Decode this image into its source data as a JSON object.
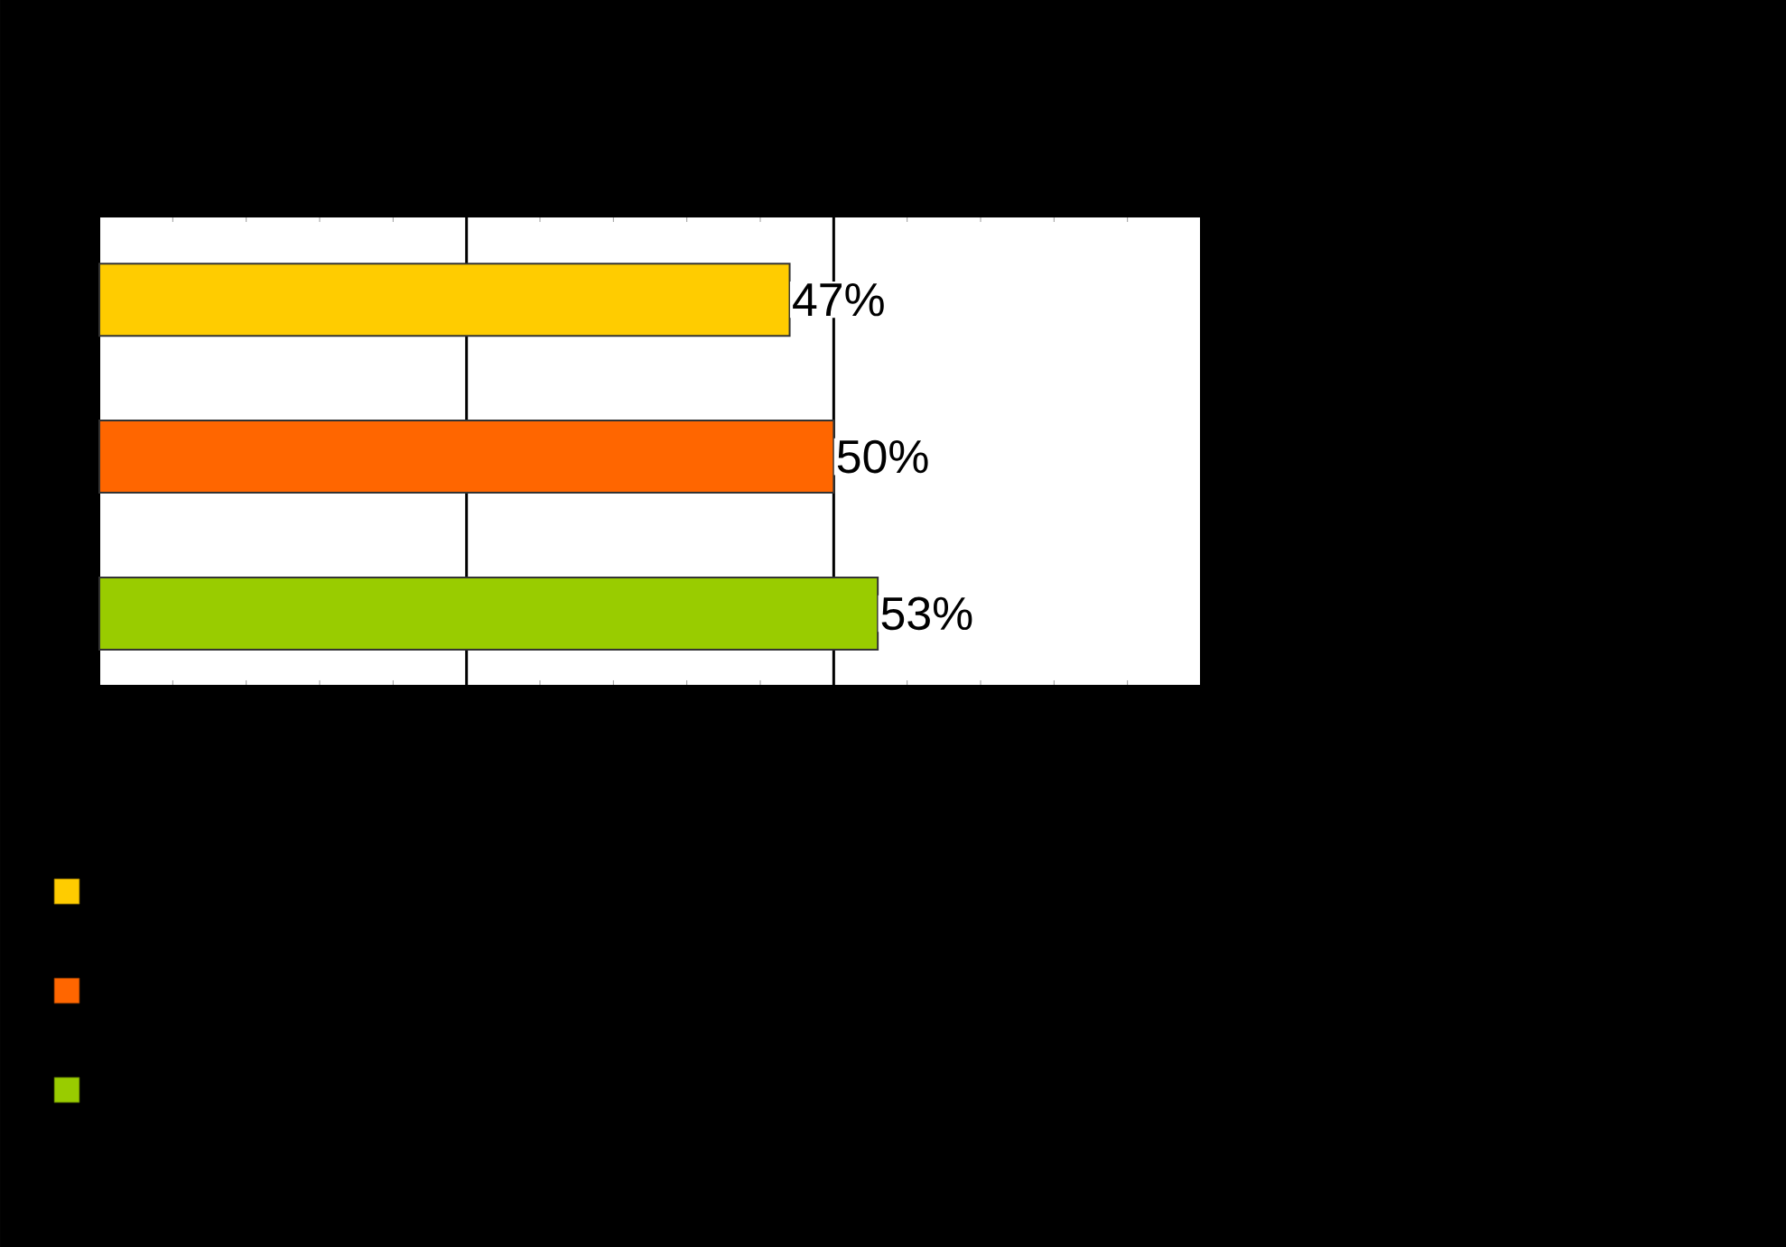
{
  "chart_data": {
    "type": "bar",
    "orientation": "horizontal",
    "categories": [
      null,
      null,
      null
    ],
    "values": [
      47,
      50,
      53
    ],
    "colors": [
      "#ffcc00",
      "#ff6600",
      "#99cc00"
    ],
    "value_labels": [
      "47%",
      "50%",
      "53%"
    ],
    "xlim": [
      0,
      75
    ],
    "ref_lines": [
      {
        "axis": "x",
        "value": 25,
        "color": "#000000"
      },
      {
        "axis": "x",
        "value": 50,
        "color": "#000000"
      }
    ]
  }
}
